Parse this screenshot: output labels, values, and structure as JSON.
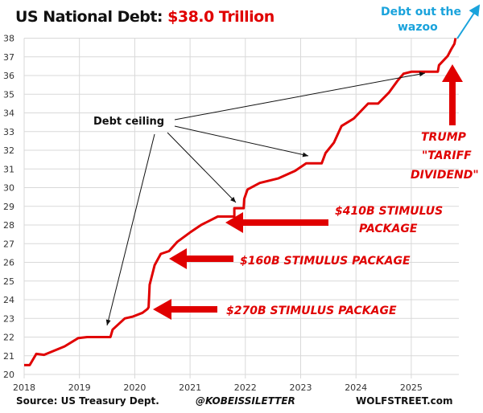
{
  "title": {
    "prefix": "US National Debt: ",
    "highlight": "$38.0 Trillion"
  },
  "chart_data": {
    "type": "line",
    "title": "US National Debt: $38.0 Trillion",
    "xlabel": "",
    "ylabel": "",
    "xlim": [
      2018,
      2025.85
    ],
    "ylim": [
      20,
      38
    ],
    "grid": true,
    "x_ticks": [
      "2018",
      "2019",
      "2020",
      "2021",
      "2022",
      "2023",
      "2024",
      "2025"
    ],
    "y_ticks": [
      "20",
      "21",
      "22",
      "23",
      "24",
      "25",
      "26",
      "27",
      "28",
      "29",
      "30",
      "31",
      "32",
      "33",
      "34",
      "35",
      "36",
      "37",
      "38"
    ],
    "line_color": "#e00000",
    "series": [
      {
        "x": [
          2018.0,
          2018.1,
          2018.22,
          2018.36,
          2018.73,
          2018.98,
          2019.14,
          2019.56,
          2019.6,
          2019.82,
          2019.97,
          2020.14,
          2020.23,
          2020.25,
          2020.27,
          2020.36,
          2020.47,
          2020.62,
          2020.77,
          2021.0,
          2021.2,
          2021.5,
          2021.8,
          2021.8,
          2021.97,
          2021.98,
          2022.04,
          2022.26,
          2022.6,
          2022.9,
          2023.1,
          2023.38,
          2023.45,
          2023.6,
          2023.74,
          2023.96,
          2024.22,
          2024.4,
          2024.6,
          2024.76,
          2024.86,
          2025.0,
          2025.48,
          2025.5,
          2025.66,
          2025.72,
          2025.78,
          2025.8
        ],
        "y": [
          20.5,
          20.5,
          21.1,
          21.05,
          21.5,
          21.95,
          22.0,
          22.0,
          22.4,
          23.0,
          23.1,
          23.3,
          23.5,
          23.6,
          24.8,
          25.85,
          26.45,
          26.6,
          27.1,
          27.6,
          28.0,
          28.45,
          28.45,
          28.9,
          28.9,
          29.4,
          29.9,
          30.25,
          30.5,
          30.9,
          31.3,
          31.3,
          31.85,
          32.4,
          33.3,
          33.7,
          34.5,
          34.5,
          35.1,
          35.75,
          36.1,
          36.2,
          36.2,
          36.55,
          37.05,
          37.4,
          37.7,
          38.0
        ]
      }
    ],
    "annotations": {
      "debt_ceiling": "Debt ceiling",
      "stim_410": [
        "$410B STIMULUS",
        "PACKAGE"
      ],
      "stim_160": "$160B STIMULUS PACKAGE",
      "stim_270": "$270B STIMULUS PACKAGE",
      "trump": [
        "TRUMP",
        "\"TARIFF",
        "DIVIDEND\""
      ],
      "wazoo": [
        "Debt out the",
        "wazoo"
      ]
    }
  },
  "footer": {
    "source": "Source: US Treasury Dept.",
    "handle": "@KOBEISSILETTER",
    "site": "WOLFSTREET.com"
  },
  "colors": {
    "line": "#e00000",
    "wazoo": "#1aa3dc",
    "grid": "#d9d9d9"
  }
}
